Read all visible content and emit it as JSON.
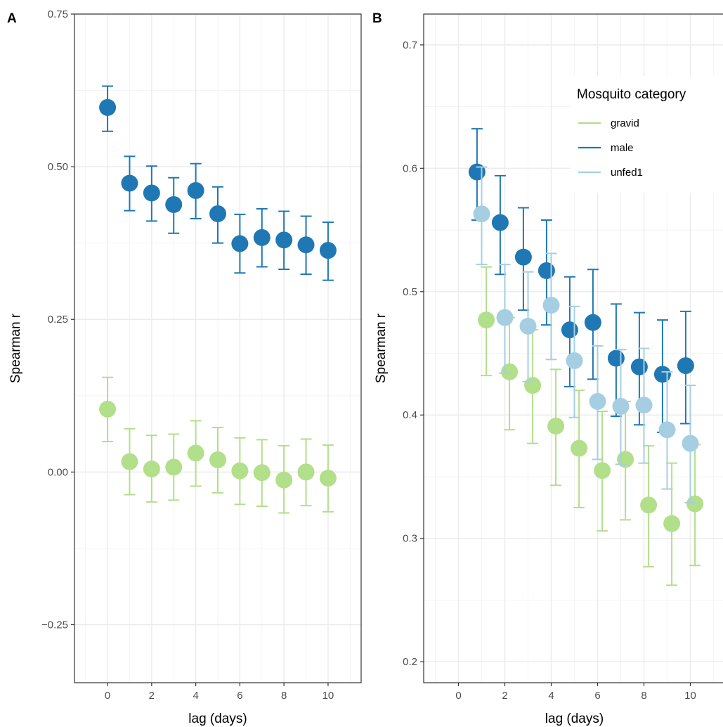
{
  "figure": {
    "legend": {
      "title": "Mosquito category",
      "placement": "top-right inside panel B",
      "entries": [
        {
          "label": "gravid",
          "color": "#b2df8a"
        },
        {
          "label": "male",
          "color": "#1f78b4"
        },
        {
          "label": "unfed1",
          "color": "#a6cee3"
        }
      ]
    }
  },
  "chart_data": [
    {
      "panel": "A",
      "type": "scatter",
      "xlabel": "lag (days)",
      "ylabel": "Spearman r",
      "xlim": [
        -1.5,
        11.5
      ],
      "ylim": [
        -0.345,
        0.75
      ],
      "xticks": [
        0,
        2,
        4,
        6,
        8,
        10
      ],
      "yticks": [
        -0.25,
        0.0,
        0.25,
        0.5,
        0.75
      ],
      "ytick_labels": [
        "−0.25",
        "0.00",
        "0.25",
        "0.50",
        "0.75"
      ],
      "grid": true,
      "error_bars": true,
      "series": [
        {
          "name": "male",
          "color": "#1f78b4",
          "x": [
            0,
            1,
            2,
            3,
            4,
            5,
            6,
            7,
            8,
            9,
            10
          ],
          "y": [
            0.597,
            0.473,
            0.457,
            0.438,
            0.461,
            0.423,
            0.374,
            0.384,
            0.38,
            0.372,
            0.363
          ],
          "lower": [
            0.558,
            0.428,
            0.411,
            0.391,
            0.415,
            0.375,
            0.326,
            0.336,
            0.332,
            0.324,
            0.314
          ],
          "upper": [
            0.632,
            0.517,
            0.501,
            0.482,
            0.505,
            0.467,
            0.422,
            0.431,
            0.427,
            0.419,
            0.409
          ]
        },
        {
          "name": "gravid",
          "color": "#b2df8a",
          "x": [
            0,
            1,
            2,
            3,
            4,
            5,
            6,
            7,
            8,
            9,
            10
          ],
          "y": [
            0.103,
            0.017,
            0.005,
            0.008,
            0.031,
            0.02,
            0.002,
            -0.001,
            -0.013,
            0.0,
            -0.01
          ],
          "lower": [
            0.05,
            -0.037,
            -0.049,
            -0.046,
            -0.023,
            -0.034,
            -0.053,
            -0.056,
            -0.067,
            -0.055,
            -0.065
          ],
          "upper": [
            0.155,
            0.071,
            0.06,
            0.062,
            0.084,
            0.073,
            0.056,
            0.053,
            0.043,
            0.054,
            0.044
          ]
        }
      ]
    },
    {
      "panel": "B",
      "type": "scatter",
      "xlabel": "lag (days)",
      "ylabel": "Spearman r",
      "xlim": [
        -1.5,
        11.5
      ],
      "ylim": [
        0.183,
        0.725
      ],
      "xticks": [
        0,
        2,
        4,
        6,
        8,
        10
      ],
      "yticks": [
        0.2,
        0.3,
        0.4,
        0.5,
        0.6,
        0.7
      ],
      "ytick_labels": [
        "0.2",
        "0.3",
        "0.4",
        "0.5",
        "0.6",
        "0.7"
      ],
      "grid": true,
      "error_bars": true,
      "series": [
        {
          "name": "gravid",
          "color": "#b2df8a",
          "x": [
            1.2,
            2.2,
            3.2,
            4.2,
            5.2,
            6.2,
            7.2,
            8.2,
            9.2,
            10.2
          ],
          "y": [
            0.477,
            0.435,
            0.424,
            0.391,
            0.373,
            0.355,
            0.364,
            0.327,
            0.312,
            0.328
          ],
          "lower": [
            0.432,
            0.388,
            0.377,
            0.343,
            0.325,
            0.306,
            0.315,
            0.277,
            0.262,
            0.278
          ],
          "upper": [
            0.52,
            0.479,
            0.469,
            0.437,
            0.42,
            0.403,
            0.411,
            0.375,
            0.361,
            0.376
          ]
        },
        {
          "name": "male",
          "color": "#1f78b4",
          "x": [
            0.8,
            1.8,
            2.8,
            3.8,
            4.8,
            5.8,
            6.8,
            7.8,
            8.8,
            9.8
          ],
          "y": [
            0.597,
            0.556,
            0.528,
            0.517,
            0.469,
            0.475,
            0.446,
            0.439,
            0.433,
            0.44
          ],
          "lower": [
            0.558,
            0.514,
            0.485,
            0.473,
            0.423,
            0.429,
            0.399,
            0.392,
            0.386,
            0.393
          ],
          "upper": [
            0.632,
            0.594,
            0.568,
            0.558,
            0.512,
            0.518,
            0.49,
            0.483,
            0.477,
            0.484
          ]
        },
        {
          "name": "unfed1",
          "color": "#a6cee3",
          "x": [
            1.0,
            2.0,
            3.0,
            4.0,
            5.0,
            6.0,
            7.0,
            8.0,
            9.0,
            10.0
          ],
          "y": [
            0.563,
            0.479,
            0.472,
            0.489,
            0.444,
            0.411,
            0.407,
            0.408,
            0.388,
            0.377
          ],
          "lower": [
            0.522,
            0.434,
            0.427,
            0.445,
            0.398,
            0.364,
            0.36,
            0.361,
            0.34,
            0.329
          ],
          "upper": [
            0.601,
            0.522,
            0.516,
            0.531,
            0.488,
            0.456,
            0.453,
            0.454,
            0.435,
            0.424
          ]
        }
      ]
    }
  ]
}
